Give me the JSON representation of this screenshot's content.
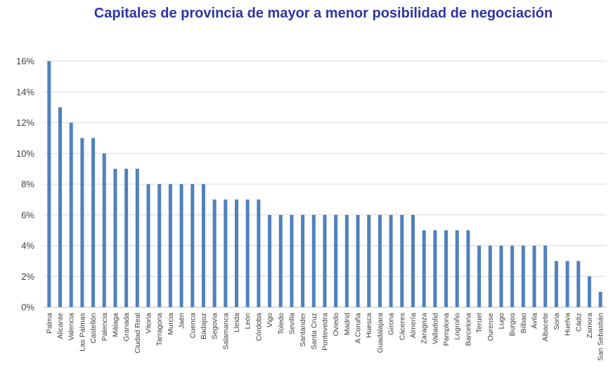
{
  "chart_data": {
    "type": "bar",
    "title": "Capitales de provincia de mayor a menor posibilidad de negociación",
    "xlabel": "",
    "ylabel": "",
    "ylim": [
      0,
      16
    ],
    "yticks": [
      "0%",
      "2%",
      "4%",
      "6%",
      "8%",
      "10%",
      "12%",
      "14%",
      "16%"
    ],
    "grid": true,
    "legend": "none",
    "bar_color": "#4f81bd",
    "title_color": "#2e35a3",
    "categories": [
      "Palma",
      "Alicante",
      "Valencia",
      "Las Palmas",
      "Castellón",
      "Palencia",
      "Málaga",
      "Granada",
      "Ciudad Real",
      "Vitoria",
      "Tarragona",
      "Murcia",
      "Jaén",
      "Cuenca",
      "Badajoz",
      "Segovia",
      "Salamanca",
      "Lleida",
      "León",
      "Córdoba",
      "Vigo",
      "Toledo",
      "Sevilla",
      "Santander",
      "Santa Cruz",
      "Pontevedra",
      "Oviedo",
      "Madrid",
      "A Coruña",
      "Huesca",
      "Guadalajara",
      "Girona",
      "Cáceres",
      "Almería",
      "Zaragoza",
      "Valladolid",
      "Pamplona",
      "Logroño",
      "Barcelona",
      "Teruel",
      "Ourense",
      "Lugo",
      "Burgos",
      "Bilbao",
      "Ávila",
      "Albacete",
      "Soria",
      "Huelva",
      "Cádiz",
      "Zamora",
      "San Sebastián"
    ],
    "values": [
      16,
      13,
      12,
      11,
      11,
      10,
      9,
      9,
      9,
      8,
      8,
      8,
      8,
      8,
      8,
      7,
      7,
      7,
      7,
      7,
      6,
      6,
      6,
      6,
      6,
      6,
      6,
      6,
      6,
      6,
      6,
      6,
      6,
      6,
      5,
      5,
      5,
      5,
      5,
      4,
      4,
      4,
      4,
      4,
      4,
      4,
      3,
      3,
      3,
      2,
      1
    ]
  }
}
